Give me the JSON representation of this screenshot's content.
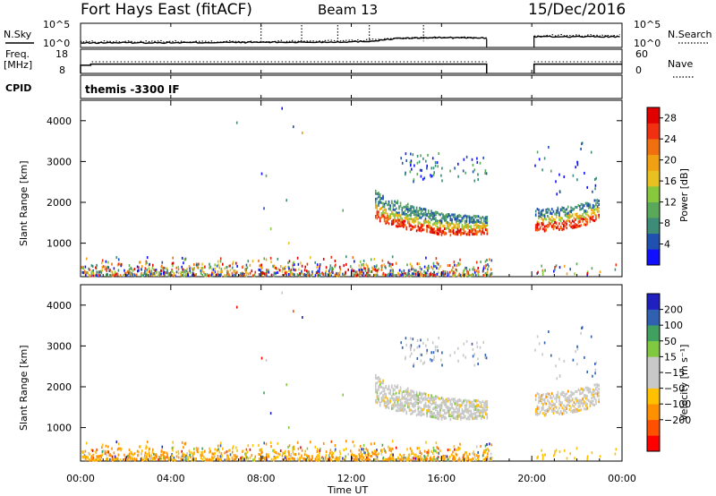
{
  "header": {
    "station": "Fort Hays East (fitACF)",
    "beam": "Beam 13",
    "date": "15/Dec/2016"
  },
  "colors": {
    "power_scale": [
      "#1010ff",
      "#2050b0",
      "#3c8c78",
      "#5aa85a",
      "#88c83c",
      "#e8c020",
      "#f0a010",
      "#f07010",
      "#f03010",
      "#e00000"
    ],
    "velocity_scale": [
      "#ff0000",
      "#ff5000",
      "#ff9000",
      "#ffc000",
      "#c8c8c8",
      "#c8c8c8",
      "#80c840",
      "#40a060",
      "#3060b0",
      "#2020c0"
    ]
  },
  "chart_data": [
    {
      "type": "line",
      "name": "N.Sky / N.Search",
      "left_label": "N.Sky",
      "right_label": "N.Search",
      "left_ticks": [
        "10^5",
        "10^0"
      ],
      "right_ticks": [
        "10^5",
        "10^0"
      ],
      "series": [
        {
          "name": "N.Sky",
          "style": "solid",
          "x_hours": [
            0,
            1,
            4,
            8,
            10,
            12,
            13,
            14,
            16,
            18
          ],
          "values_log10": [
            0.8,
            0.9,
            0.9,
            1.0,
            1.0,
            1.1,
            1.3,
            1.9,
            2.1,
            2.0
          ]
        },
        {
          "name": "N.Search",
          "style": "dotted",
          "x_hours": [
            0,
            4,
            8,
            12,
            13,
            15,
            18
          ],
          "values_log10": [
            1.1,
            1.2,
            1.2,
            1.4,
            1.6,
            2.0,
            2.1
          ]
        }
      ],
      "gaps_hours": [
        [
          18.0,
          20.1
        ]
      ]
    },
    {
      "type": "line",
      "name": "Freq / Nave",
      "left_label": "Freq.",
      "left_unit": "[MHz]",
      "right_label": "Nave",
      "left_ticks": [
        "18",
        "8"
      ],
      "right_ticks": [
        "60",
        "0"
      ],
      "series": [
        {
          "name": "Freq",
          "style": "solid",
          "x_hours": [
            0,
            0.4,
            18,
            20.1,
            24
          ],
          "values": [
            10.5,
            12.0,
            12.0,
            12.0,
            12.0
          ]
        },
        {
          "name": "Nave",
          "style": "dotted",
          "x_hours": [
            0,
            18,
            20.1,
            24
          ],
          "values": [
            30,
            30,
            30,
            30
          ]
        }
      ],
      "gaps_hours": [
        [
          18.0,
          20.1
        ]
      ]
    },
    {
      "type": "table",
      "name": "CPID",
      "label": "CPID",
      "program": "themis -3300 IF"
    },
    {
      "type": "heatmap",
      "name": "Power",
      "ylabel": "Slant Range [km]",
      "xlabel": "Time UT",
      "xlim_hours": [
        0,
        24
      ],
      "x_ticks": [
        "00:00",
        "04:00",
        "08:00",
        "12:00",
        "16:00",
        "20:00",
        "00:00"
      ],
      "ylim_km": [
        180,
        4500
      ],
      "y_ticks": [
        1000,
        2000,
        3000,
        4000
      ],
      "colorbar_label": "Power [dB]",
      "colorbar_ticks": [
        4,
        8,
        12,
        16,
        20,
        24,
        28
      ],
      "colorbar_range": [
        0,
        30
      ],
      "regions": [
        {
          "desc": "near-range clutter",
          "t": [
            0,
            18
          ],
          "r": [
            180,
            450
          ]
        },
        {
          "desc": "main band (strong)",
          "t": [
            13.0,
            18.0
          ],
          "r_start": 1900,
          "r_end": 1300
        },
        {
          "desc": "main band second segment",
          "t": [
            20.1,
            23.0
          ],
          "r_start": 1400,
          "r_end": 1750
        },
        {
          "desc": "far range scatter",
          "t": [
            14.0,
            18.0
          ],
          "r": [
            2500,
            3200
          ]
        }
      ]
    },
    {
      "type": "heatmap",
      "name": "Velocity",
      "ylabel": "Slant Range [km]",
      "xlabel": "Time UT",
      "xlim_hours": [
        0,
        24
      ],
      "x_ticks": [
        "00:00",
        "04:00",
        "08:00",
        "12:00",
        "16:00",
        "20:00",
        "00:00"
      ],
      "ylim_km": [
        180,
        4500
      ],
      "y_ticks": [
        1000,
        2000,
        3000,
        4000
      ],
      "colorbar_label": "Velocity [m s⁻¹]",
      "colorbar_ticks": [
        "200",
        "100",
        "50",
        "15",
        "−15",
        "−50",
        "−100",
        "−200"
      ]
    }
  ]
}
